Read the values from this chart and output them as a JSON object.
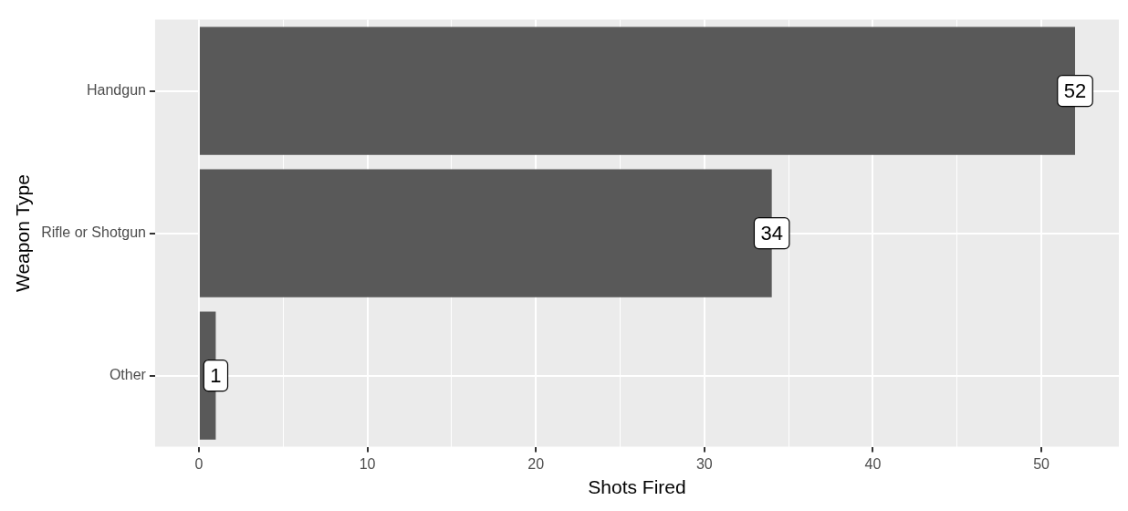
{
  "chart_data": {
    "type": "bar",
    "orientation": "horizontal",
    "xlabel": "Shots Fired",
    "ylabel": "Weapon Type",
    "categories": [
      "Handgun",
      "Rifle or Shotgun",
      "Other"
    ],
    "values": [
      52,
      34,
      1
    ],
    "color": "#595959",
    "xlim": [
      -2.6,
      54.6
    ],
    "xticks": [
      0,
      {
        "value": 5,
        "label": null
      },
      10,
      {
        "value": 15,
        "label": null
      },
      20,
      {
        "value": 25,
        "label": null
      },
      30,
      {
        "value": 35,
        "label": null
      },
      40,
      {
        "value": 45,
        "label": null
      },
      50
    ],
    "grid": true,
    "data_labels": true,
    "legend": false
  }
}
